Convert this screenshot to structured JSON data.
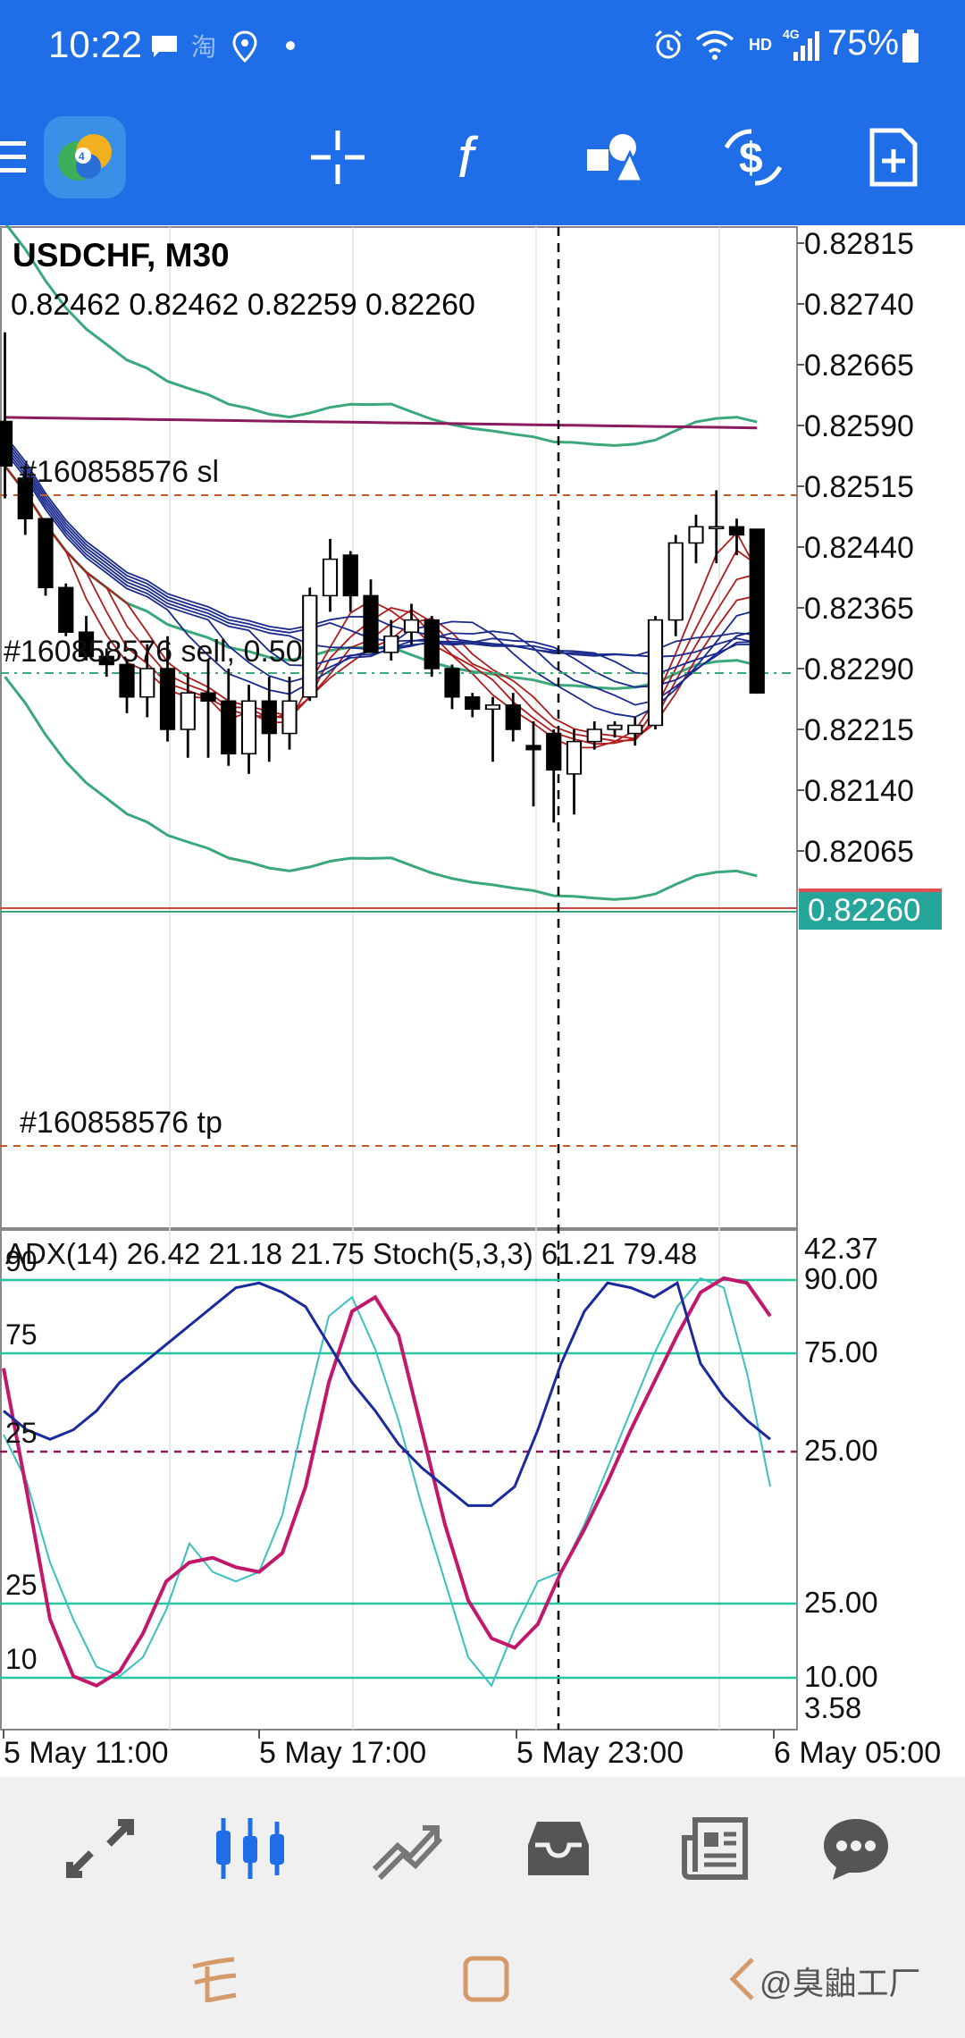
{
  "status_bar": {
    "time": "10:22",
    "network_label": "HD",
    "signal_label": "4G",
    "battery": "75%"
  },
  "toolbar": {
    "icons": [
      "menu-icon",
      "app-logo",
      "crosshair-icon",
      "function-icon",
      "objects-icon",
      "trade-icon",
      "new-order-icon"
    ]
  },
  "chart": {
    "symbol": "USDCHF, M30",
    "ohlc": "0.82462 0.82462 0.82259 0.82260",
    "current_price": "0.82260",
    "price_axis": [
      "0.82815",
      "0.82740",
      "0.82665",
      "0.82590",
      "0.82515",
      "0.82440",
      "0.82365",
      "0.82290",
      "0.82215",
      "0.82140",
      "0.82065"
    ],
    "order_sl_label": "#160858576 sl",
    "order_open_label": "#160858576 sell, 0.50",
    "order_tp_label": "#160858576 tp",
    "indicator_label": "ADX(14) 26.42 21.18 21.75 Stoch(5,3,3) 61.21 79.48",
    "indicator_axis": [
      "42.37",
      "90.00",
      "75.00",
      "25.00",
      "25.00",
      "10.00",
      "3.58"
    ],
    "indicator_left_labels": [
      "90",
      "75",
      "25",
      "25",
      "10"
    ],
    "time_axis": [
      "5 May 11:00",
      "5 May 17:00",
      "5 May 23:00",
      "6 May 05:00"
    ],
    "colors": {
      "up": "#ffffff",
      "down": "#000000",
      "bollinger": "#3aa87a",
      "ma_long": "#8b1a5e",
      "ma_blue": "#1a2a8c",
      "ma_red": "#b01c1c",
      "price_tag": "#26a69a",
      "stoch_main": "#c2186b",
      "stoch_signal": "#3bbfbf",
      "adx": "#1a2a9c"
    }
  },
  "chart_data": {
    "type": "candlestick",
    "title": "USDCHF, M30",
    "ylim": [
      0.8202,
      0.8286
    ],
    "candles": [
      [
        0.82595,
        0.82705,
        0.825,
        0.8254
      ],
      [
        0.82525,
        0.8254,
        0.82455,
        0.82475
      ],
      [
        0.82475,
        0.82475,
        0.8238,
        0.8239
      ],
      [
        0.8239,
        0.82395,
        0.8233,
        0.82335
      ],
      [
        0.82335,
        0.82355,
        0.823,
        0.82305
      ],
      [
        0.82305,
        0.82315,
        0.8228,
        0.82295
      ],
      [
        0.82295,
        0.823,
        0.82235,
        0.82255
      ],
      [
        0.82255,
        0.8232,
        0.8223,
        0.8229
      ],
      [
        0.8229,
        0.8233,
        0.822,
        0.82215
      ],
      [
        0.82215,
        0.82285,
        0.8218,
        0.8226
      ],
      [
        0.8226,
        0.823,
        0.8218,
        0.8225
      ],
      [
        0.8225,
        0.8229,
        0.8217,
        0.82185
      ],
      [
        0.82185,
        0.8227,
        0.8216,
        0.8225
      ],
      [
        0.8225,
        0.8228,
        0.82175,
        0.8221
      ],
      [
        0.8221,
        0.8228,
        0.8219,
        0.8225
      ],
      [
        0.82255,
        0.8239,
        0.8225,
        0.8238
      ],
      [
        0.8238,
        0.8245,
        0.8236,
        0.82425
      ],
      [
        0.8243,
        0.82435,
        0.8236,
        0.8238
      ],
      [
        0.8238,
        0.824,
        0.8231,
        0.8231
      ],
      [
        0.8231,
        0.8235,
        0.823,
        0.8233
      ],
      [
        0.82335,
        0.8237,
        0.8232,
        0.8235
      ],
      [
        0.8235,
        0.82355,
        0.8228,
        0.8229
      ],
      [
        0.8229,
        0.82295,
        0.8224,
        0.82255
      ],
      [
        0.82255,
        0.8226,
        0.8223,
        0.8224
      ],
      [
        0.8224,
        0.82255,
        0.82175,
        0.82245
      ],
      [
        0.82245,
        0.8226,
        0.822,
        0.82215
      ],
      [
        0.82195,
        0.82225,
        0.8212,
        0.8219
      ],
      [
        0.8221,
        0.82215,
        0.821,
        0.82165
      ],
      [
        0.8216,
        0.82215,
        0.8211,
        0.822
      ],
      [
        0.822,
        0.82225,
        0.8219,
        0.82215
      ],
      [
        0.82215,
        0.82225,
        0.82205,
        0.8222
      ],
      [
        0.8221,
        0.8223,
        0.82195,
        0.8222
      ],
      [
        0.8222,
        0.82355,
        0.82215,
        0.8235
      ],
      [
        0.8235,
        0.82455,
        0.8233,
        0.82445
      ],
      [
        0.82445,
        0.8248,
        0.8242,
        0.82465
      ],
      [
        0.82465,
        0.8251,
        0.8242,
        0.82465
      ],
      [
        0.82465,
        0.82475,
        0.8243,
        0.82455
      ],
      [
        0.82462,
        0.82462,
        0.82259,
        0.8226
      ]
    ],
    "stochastic_main": [
      71,
      45,
      18,
      6,
      4,
      7,
      15,
      26,
      30,
      31,
      29,
      28,
      32,
      46,
      68,
      83,
      86,
      78,
      58,
      38,
      22,
      14,
      12,
      17,
      28,
      37,
      47,
      58,
      68,
      78,
      87,
      90,
      89,
      82
    ],
    "stochastic_signal": [
      57,
      47,
      30,
      18,
      8,
      6,
      10,
      20,
      34,
      28,
      26,
      28,
      40,
      62,
      82,
      86,
      75,
      60,
      42,
      26,
      10,
      4,
      16,
      26,
      28,
      38,
      50,
      62,
      74,
      84,
      90,
      88,
      70,
      46
    ],
    "adx": [
      62,
      58,
      56,
      58,
      62,
      68,
      72,
      76,
      80,
      84,
      88,
      89,
      87,
      84,
      76,
      68,
      62,
      55,
      50,
      46,
      42,
      42,
      46,
      58,
      72,
      83,
      89,
      88,
      86,
      89,
      72,
      65,
      60,
      56
    ]
  },
  "bottom_nav": {
    "items": [
      "quotes-icon",
      "chart-icon",
      "trade-icon",
      "history-icon",
      "news-icon",
      "messages-icon"
    ]
  },
  "system_nav": {
    "watermark": "@臭鼬工厂"
  }
}
